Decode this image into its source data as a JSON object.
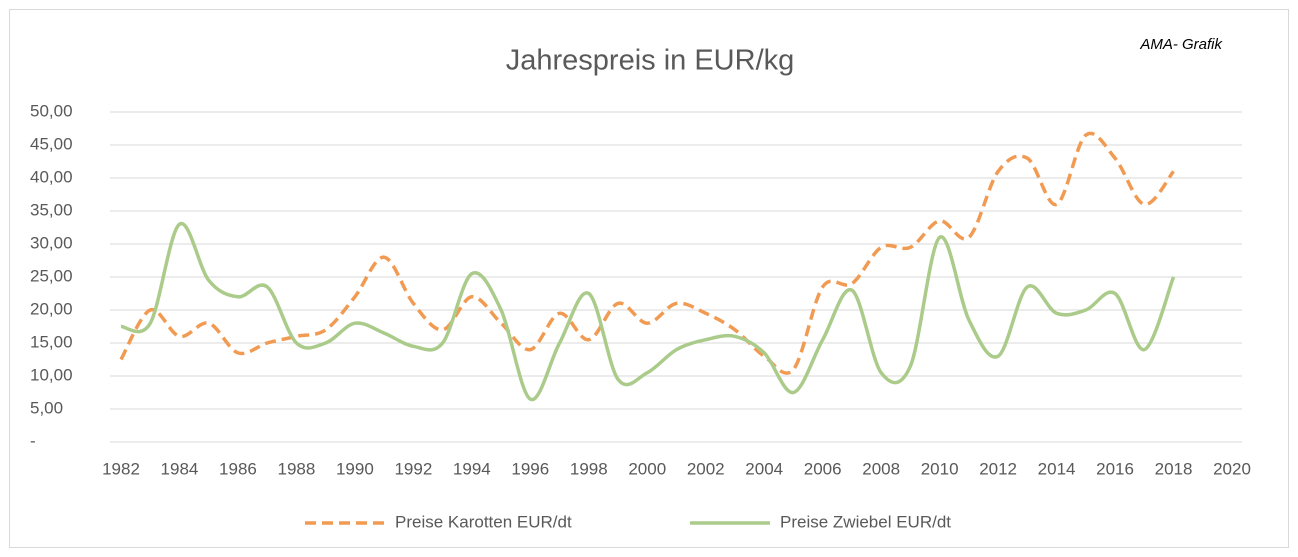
{
  "chart_data": {
    "type": "line",
    "title": "Jahrespreis in EUR/kg",
    "annotation": "AMA- Grafik",
    "x": [
      1982,
      1983,
      1984,
      1985,
      1986,
      1987,
      1988,
      1989,
      1990,
      1991,
      1992,
      1993,
      1994,
      1995,
      1996,
      1997,
      1998,
      1999,
      2000,
      2001,
      2002,
      2003,
      2004,
      2005,
      2006,
      2007,
      2008,
      2009,
      2010,
      2011,
      2012,
      2013,
      2014,
      2015,
      2016,
      2017,
      2018
    ],
    "series": [
      {
        "name": "Preise Karotten EUR/dt",
        "color": "#f19a52",
        "dashed": true,
        "values": [
          12.5,
          20,
          16,
          18,
          13.5,
          15,
          16,
          17,
          22,
          28,
          21,
          17,
          22,
          18,
          14,
          19.5,
          15.5,
          21,
          18,
          21,
          19.5,
          17,
          13,
          11,
          23.5,
          24,
          29.5,
          29.5,
          33.5,
          31,
          41,
          43,
          36,
          46.5,
          43,
          36,
          41
        ]
      },
      {
        "name": "Preise Zwiebel EUR/dt",
        "color": "#aacb8a",
        "dashed": false,
        "values": [
          17.5,
          18,
          33,
          24.5,
          22,
          23.5,
          15,
          15,
          18,
          16.5,
          14.5,
          15,
          25.5,
          20,
          6.5,
          15,
          22.5,
          9.5,
          10.5,
          14,
          15.5,
          16,
          13.5,
          7.5,
          15.5,
          23,
          10.5,
          11.5,
          31,
          18.5,
          13,
          23.5,
          19.5,
          20,
          22.5,
          14,
          25
        ]
      }
    ],
    "xlim": [
      1982,
      2020
    ],
    "xticks": [
      1982,
      1984,
      1986,
      1988,
      1990,
      1992,
      1994,
      1996,
      1998,
      2000,
      2002,
      2004,
      2006,
      2008,
      2010,
      2012,
      2014,
      2016,
      2018,
      2020
    ],
    "ylim": [
      0,
      50
    ],
    "yticks": [
      {
        "value": 0,
        "label": "-"
      },
      {
        "value": 5,
        "label": "5,00"
      },
      {
        "value": 10,
        "label": "10,00"
      },
      {
        "value": 15,
        "label": "15,00"
      },
      {
        "value": 20,
        "label": "20,00"
      },
      {
        "value": 25,
        "label": "25,00"
      },
      {
        "value": 30,
        "label": "30,00"
      },
      {
        "value": 35,
        "label": "35,00"
      },
      {
        "value": 40,
        "label": "40,00"
      },
      {
        "value": 45,
        "label": "45,00"
      },
      {
        "value": 50,
        "label": "50,00"
      }
    ],
    "grid": true,
    "legend": "bottom"
  }
}
